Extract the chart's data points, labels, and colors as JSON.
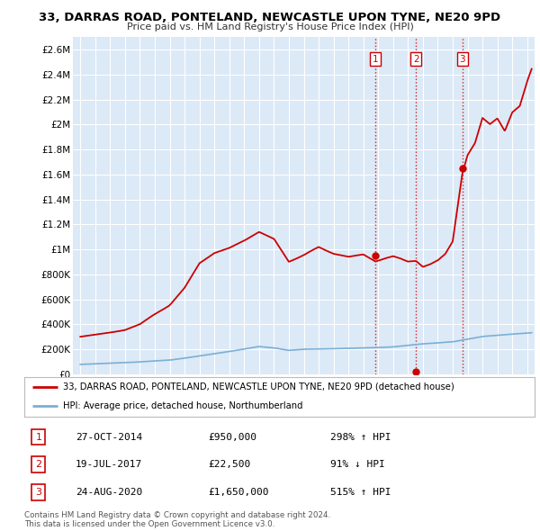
{
  "title": "33, DARRAS ROAD, PONTELAND, NEWCASTLE UPON TYNE, NE20 9PD",
  "subtitle": "Price paid vs. HM Land Registry's House Price Index (HPI)",
  "bg_color": "#ffffff",
  "plot_bg_color": "#dce9f7",
  "grid_color": "#ffffff",
  "red_line_color": "#cc0000",
  "blue_line_color": "#7bafd4",
  "sale_marker_color": "#cc0000",
  "yticks": [
    0,
    200000,
    400000,
    600000,
    800000,
    1000000,
    1200000,
    1400000,
    1600000,
    1800000,
    2000000,
    2200000,
    2400000,
    2600000
  ],
  "ytick_labels": [
    "£0",
    "£200K",
    "£400K",
    "£600K",
    "£800K",
    "£1M",
    "£1.2M",
    "£1.4M",
    "£1.6M",
    "£1.8M",
    "£2M",
    "£2.2M",
    "£2.4M",
    "£2.6M"
  ],
  "xlim_start": 1994.5,
  "xlim_end": 2025.5,
  "ylim_min": 0,
  "ylim_max": 2700000,
  "sales": [
    {
      "date": 2014.82,
      "price": 950000,
      "label": "1"
    },
    {
      "date": 2017.54,
      "price": 22500,
      "label": "2"
    },
    {
      "date": 2020.65,
      "price": 1650000,
      "label": "3"
    }
  ],
  "legend_line1": "33, DARRAS ROAD, PONTELAND, NEWCASTLE UPON TYNE, NE20 9PD (detached house)",
  "legend_line2": "HPI: Average price, detached house, Northumberland",
  "table_entries": [
    {
      "num": "1",
      "date": "27-OCT-2014",
      "price": "£950,000",
      "hpi": "298% ↑ HPI"
    },
    {
      "num": "2",
      "date": "19-JUL-2017",
      "price": "£22,500",
      "hpi": "91% ↓ HPI"
    },
    {
      "num": "3",
      "date": "24-AUG-2020",
      "price": "£1,650,000",
      "hpi": "515% ↑ HPI"
    }
  ],
  "footer": "Contains HM Land Registry data © Crown copyright and database right 2024.\nThis data is licensed under the Open Government Licence v3.0."
}
